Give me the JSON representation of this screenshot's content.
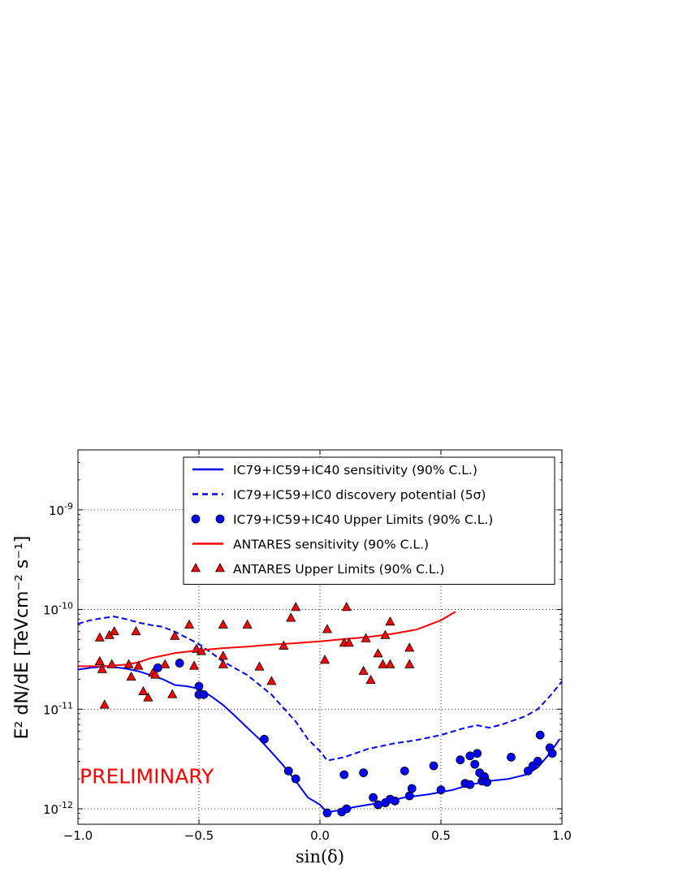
{
  "chart_data": {
    "type": "scatter",
    "xlabel": "sin(δ)",
    "ylabel": "E² dN/dE [TeVcm⁻² s⁻¹]",
    "xlim": [
      -1.0,
      1.0
    ],
    "ylim": [
      7e-13,
      4e-09
    ],
    "yscale": "log",
    "grid": true,
    "legend_position": "top-right",
    "x_ticks": [
      {
        "value": -1.0,
        "label": "−1.0"
      },
      {
        "value": -0.5,
        "label": "−0.5"
      },
      {
        "value": 0.0,
        "label": "0.0"
      },
      {
        "value": 0.5,
        "label": "0.5"
      },
      {
        "value": 1.0,
        "label": "1.0"
      }
    ],
    "y_ticks": [
      {
        "value": 1e-12,
        "base": "10",
        "exp": "-12"
      },
      {
        "value": 1e-11,
        "base": "10",
        "exp": "-11"
      },
      {
        "value": 1e-10,
        "base": "10",
        "exp": "-10"
      },
      {
        "value": 1e-09,
        "base": "10",
        "exp": "-9"
      }
    ],
    "annotation": {
      "text": "PRELIMINARY",
      "color": "#ff0000",
      "x": -1.0,
      "y": 1.8e-12
    },
    "series": [
      {
        "name": "IC79+IC59+IC40 sensitivity (90% C.L.)",
        "kind": "line",
        "style": "solid",
        "color": "#0000ff",
        "points": [
          [
            -1.0,
            2.5e-11
          ],
          [
            -0.95,
            2.6e-11
          ],
          [
            -0.88,
            2.7e-11
          ],
          [
            -0.8,
            2.55e-11
          ],
          [
            -0.75,
            2.4e-11
          ],
          [
            -0.7,
            2.2e-11
          ],
          [
            -0.65,
            2e-11
          ],
          [
            -0.6,
            1.75e-11
          ],
          [
            -0.55,
            1.7e-11
          ],
          [
            -0.5,
            1.6e-11
          ],
          [
            -0.45,
            1.35e-11
          ],
          [
            -0.4,
            1.1e-11
          ],
          [
            -0.35,
            8.5e-12
          ],
          [
            -0.3,
            6.5e-12
          ],
          [
            -0.25,
            5e-12
          ],
          [
            -0.2,
            3.7e-12
          ],
          [
            -0.15,
            2.7e-12
          ],
          [
            -0.1,
            1.9e-12
          ],
          [
            -0.05,
            1.3e-12
          ],
          [
            0.0,
            1.1e-12
          ],
          [
            0.03,
            9.2e-13
          ],
          [
            0.08,
            9.7e-13
          ],
          [
            0.15,
            1.05e-12
          ],
          [
            0.25,
            1.15e-12
          ],
          [
            0.35,
            1.3e-12
          ],
          [
            0.45,
            1.4e-12
          ],
          [
            0.55,
            1.55e-12
          ],
          [
            0.62,
            1.75e-12
          ],
          [
            0.7,
            1.9e-12
          ],
          [
            0.78,
            2e-12
          ],
          [
            0.85,
            2.2e-12
          ],
          [
            0.9,
            2.6e-12
          ],
          [
            0.95,
            3.6e-12
          ],
          [
            0.99,
            5e-12
          ]
        ]
      },
      {
        "name": "IC79+IC59+IC0 discovery potential (5σ)",
        "kind": "line",
        "style": "dashed",
        "color": "#0000ff",
        "points": [
          [
            -1.0,
            7.2e-11
          ],
          [
            -0.95,
            7.8e-11
          ],
          [
            -0.9,
            8.2e-11
          ],
          [
            -0.85,
            8.5e-11
          ],
          [
            -0.8,
            8e-11
          ],
          [
            -0.75,
            7.4e-11
          ],
          [
            -0.7,
            7e-11
          ],
          [
            -0.65,
            6.7e-11
          ],
          [
            -0.6,
            6e-11
          ],
          [
            -0.55,
            5.2e-11
          ],
          [
            -0.5,
            4.5e-11
          ],
          [
            -0.45,
            3.7e-11
          ],
          [
            -0.4,
            3e-11
          ],
          [
            -0.3,
            2.2e-11
          ],
          [
            -0.2,
            1.4e-11
          ],
          [
            -0.1,
            7.5e-12
          ],
          [
            -0.05,
            5e-12
          ],
          [
            0.0,
            3.8e-12
          ],
          [
            0.03,
            3.05e-12
          ],
          [
            0.1,
            3.3e-12
          ],
          [
            0.2,
            4e-12
          ],
          [
            0.3,
            4.5e-12
          ],
          [
            0.4,
            4.9e-12
          ],
          [
            0.5,
            5.5e-12
          ],
          [
            0.6,
            6.5e-12
          ],
          [
            0.65,
            6.9e-12
          ],
          [
            0.7,
            6.5e-12
          ],
          [
            0.75,
            7e-12
          ],
          [
            0.85,
            8.5e-12
          ],
          [
            0.9,
            1e-11
          ],
          [
            0.95,
            1.35e-11
          ],
          [
            1.0,
            1.9e-11
          ]
        ]
      },
      {
        "name": "IC79+IC59+IC40 Upper Limits (90% C.L.)",
        "kind": "scatter",
        "marker": "circle",
        "color": "#0000ff",
        "points": [
          [
            -0.67,
            2.6e-11
          ],
          [
            -0.58,
            2.9e-11
          ],
          [
            -0.5,
            1.7e-11
          ],
          [
            -0.5,
            1.4e-11
          ],
          [
            -0.48,
            1.4e-11
          ],
          [
            -0.23,
            5e-12
          ],
          [
            -0.13,
            2.4e-12
          ],
          [
            -0.1,
            2e-12
          ],
          [
            0.03,
            9.1e-13
          ],
          [
            0.09,
            9.3e-13
          ],
          [
            0.11,
            1e-12
          ],
          [
            0.1,
            2.2e-12
          ],
          [
            0.18,
            2.3e-12
          ],
          [
            0.22,
            1.3e-12
          ],
          [
            0.24,
            1.1e-12
          ],
          [
            0.27,
            1.15e-12
          ],
          [
            0.29,
            1.25e-12
          ],
          [
            0.31,
            1.2e-12
          ],
          [
            0.35,
            2.4e-12
          ],
          [
            0.37,
            1.35e-12
          ],
          [
            0.38,
            1.6e-12
          ],
          [
            0.47,
            2.7e-12
          ],
          [
            0.5,
            1.55e-12
          ],
          [
            0.58,
            3.1e-12
          ],
          [
            0.6,
            1.8e-12
          ],
          [
            0.62,
            1.75e-12
          ],
          [
            0.62,
            3.4e-12
          ],
          [
            0.64,
            2.8e-12
          ],
          [
            0.65,
            3.6e-12
          ],
          [
            0.66,
            2.3e-12
          ],
          [
            0.67,
            1.9e-12
          ],
          [
            0.68,
            2.1e-12
          ],
          [
            0.69,
            1.85e-12
          ],
          [
            0.79,
            3.3e-12
          ],
          [
            0.86,
            2.4e-12
          ],
          [
            0.88,
            2.7e-12
          ],
          [
            0.9,
            3e-12
          ],
          [
            0.91,
            5.5e-12
          ],
          [
            0.95,
            4.1e-12
          ],
          [
            0.96,
            3.6e-12
          ]
        ]
      },
      {
        "name": "ANTARES sensitivity (90% C.L.)",
        "kind": "line",
        "style": "solid",
        "color": "#ff0000",
        "points": [
          [
            -1.0,
            2.7e-11
          ],
          [
            -0.9,
            2.7e-11
          ],
          [
            -0.8,
            2.8e-11
          ],
          [
            -0.75,
            2.95e-11
          ],
          [
            -0.7,
            3.25e-11
          ],
          [
            -0.6,
            3.65e-11
          ],
          [
            -0.5,
            3.9e-11
          ],
          [
            -0.4,
            4.1e-11
          ],
          [
            -0.3,
            4.25e-11
          ],
          [
            -0.2,
            4.45e-11
          ],
          [
            -0.1,
            4.6e-11
          ],
          [
            0.0,
            4.8e-11
          ],
          [
            0.1,
            5.05e-11
          ],
          [
            0.2,
            5.3e-11
          ],
          [
            0.3,
            5.7e-11
          ],
          [
            0.4,
            6.3e-11
          ],
          [
            0.5,
            7.8e-11
          ],
          [
            0.56,
            9.5e-11
          ]
        ]
      },
      {
        "name": "ANTARES Upper Limits (90% C.L.)",
        "kind": "scatter",
        "marker": "triangle",
        "color": "#ff0000",
        "points": [
          [
            -0.91,
            5.2e-11
          ],
          [
            -0.91,
            3e-11
          ],
          [
            -0.9,
            2.5e-11
          ],
          [
            -0.89,
            1.1e-11
          ],
          [
            -0.87,
            5.5e-11
          ],
          [
            -0.86,
            2.8e-11
          ],
          [
            -0.85,
            6e-11
          ],
          [
            -0.79,
            2.8e-11
          ],
          [
            -0.78,
            2.1e-11
          ],
          [
            -0.76,
            6e-11
          ],
          [
            -0.75,
            2.7e-11
          ],
          [
            -0.73,
            1.5e-11
          ],
          [
            -0.71,
            1.3e-11
          ],
          [
            -0.69,
            2.3e-11
          ],
          [
            -0.68,
            2.2e-11
          ],
          [
            -0.64,
            2.8e-11
          ],
          [
            -0.61,
            1.4e-11
          ],
          [
            -0.6,
            5.4e-11
          ],
          [
            -0.54,
            7e-11
          ],
          [
            -0.52,
            2.7e-11
          ],
          [
            -0.51,
            4e-11
          ],
          [
            -0.49,
            3.8e-11
          ],
          [
            -0.4,
            7e-11
          ],
          [
            -0.4,
            3.4e-11
          ],
          [
            -0.4,
            2.8e-11
          ],
          [
            -0.3,
            7e-11
          ],
          [
            -0.25,
            2.65e-11
          ],
          [
            -0.2,
            1.9e-11
          ],
          [
            -0.15,
            4.3e-11
          ],
          [
            -0.12,
            8.2e-11
          ],
          [
            -0.1,
            1.05e-10
          ],
          [
            0.02,
            3.1e-11
          ],
          [
            0.03,
            6.3e-11
          ],
          [
            0.1,
            4.6e-11
          ],
          [
            0.12,
            4.6e-11
          ],
          [
            0.11,
            1.05e-10
          ],
          [
            0.18,
            2.4e-11
          ],
          [
            0.19,
            5.1e-11
          ],
          [
            0.21,
            1.95e-11
          ],
          [
            0.24,
            3.6e-11
          ],
          [
            0.26,
            2.8e-11
          ],
          [
            0.27,
            5.5e-11
          ],
          [
            0.29,
            2.8e-11
          ],
          [
            0.29,
            7.5e-11
          ],
          [
            0.37,
            4.1e-11
          ],
          [
            0.37,
            2.8e-11
          ]
        ]
      }
    ]
  }
}
